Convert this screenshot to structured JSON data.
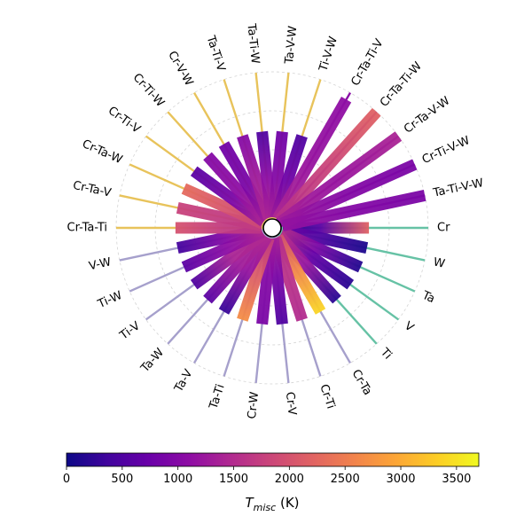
{
  "chart_data": {
    "type": "radial-bar",
    "title": "",
    "colorbar": {
      "label_main": "T",
      "label_sub": "misc",
      "label_unit": " (K)",
      "range": [
        0,
        3700
      ],
      "ticks": [
        0,
        500,
        1000,
        1500,
        2000,
        2500,
        3000,
        3500
      ],
      "colormap": "plasma"
    },
    "group_colors": {
      "unary": "#66c2a5",
      "binary": "#a6a0cc",
      "ternary": "#e8c35b",
      "quaternary": "#8a0ea6"
    },
    "systems": [
      {
        "name": "Cr",
        "group": "unary",
        "length": 0.62,
        "profile": [
          0,
          600,
          2200
        ]
      },
      {
        "name": "W",
        "group": "unary",
        "length": 0.62,
        "profile": [
          900,
          500,
          100
        ]
      },
      {
        "name": "Ta",
        "group": "unary",
        "length": 0.62,
        "profile": [
          1700,
          900,
          150
        ]
      },
      {
        "name": "V",
        "group": "unary",
        "length": 0.62,
        "profile": [
          1700,
          700,
          200
        ]
      },
      {
        "name": "Ti",
        "group": "unary",
        "length": 0.62,
        "profile": [
          1700,
          1200,
          200
        ]
      },
      {
        "name": "Cr-Ta",
        "group": "binary",
        "length": 0.62,
        "profile": [
          1800,
          2600,
          3400
        ]
      },
      {
        "name": "Cr-Ti",
        "group": "binary",
        "length": 0.62,
        "profile": [
          1500,
          1600,
          1500
        ]
      },
      {
        "name": "Cr-V",
        "group": "binary",
        "length": 0.62,
        "profile": [
          1500,
          900,
          500
        ]
      },
      {
        "name": "Cr-W",
        "group": "binary",
        "length": 0.62,
        "profile": [
          1400,
          1000,
          900
        ]
      },
      {
        "name": "Ta-Ti",
        "group": "binary",
        "length": 0.62,
        "profile": [
          1600,
          2100,
          2700
        ]
      },
      {
        "name": "Ta-V",
        "group": "binary",
        "length": 0.62,
        "profile": [
          1500,
          1200,
          300
        ]
      },
      {
        "name": "Ta-W",
        "group": "binary",
        "length": 0.62,
        "profile": [
          1500,
          1300,
          600
        ]
      },
      {
        "name": "Ti-V",
        "group": "binary",
        "length": 0.62,
        "profile": [
          1500,
          1400,
          500
        ]
      },
      {
        "name": "Ti-W",
        "group": "binary",
        "length": 0.62,
        "profile": [
          1500,
          1100,
          600
        ]
      },
      {
        "name": "V-W",
        "group": "binary",
        "length": 0.62,
        "profile": [
          1600,
          1000,
          400
        ]
      },
      {
        "name": "Cr-Ta-Ti",
        "group": "ternary",
        "length": 0.62,
        "profile": [
          1600,
          1700,
          2000
        ]
      },
      {
        "name": "Cr-Ta-V",
        "group": "ternary",
        "length": 0.62,
        "profile": [
          1700,
          1700,
          1800
        ]
      },
      {
        "name": "Cr-Ta-W",
        "group": "ternary",
        "length": 0.62,
        "profile": [
          1800,
          2000,
          2300
        ]
      },
      {
        "name": "Cr-Ti-V",
        "group": "ternary",
        "length": 0.62,
        "profile": [
          1500,
          900,
          600
        ]
      },
      {
        "name": "Cr-Ti-W",
        "group": "ternary",
        "length": 0.62,
        "profile": [
          1500,
          1100,
          1000
        ]
      },
      {
        "name": "Cr-V-W",
        "group": "ternary",
        "length": 0.62,
        "profile": [
          1400,
          900,
          800
        ]
      },
      {
        "name": "Ta-Ti-V",
        "group": "ternary",
        "length": 0.62,
        "profile": [
          1500,
          1300,
          1000
        ]
      },
      {
        "name": "Ta-Ti-W",
        "group": "ternary",
        "length": 0.62,
        "profile": [
          1500,
          1100,
          500
        ]
      },
      {
        "name": "Ta-V-W",
        "group": "ternary",
        "length": 0.62,
        "profile": [
          1500,
          1000,
          800
        ]
      },
      {
        "name": "Ti-V-W",
        "group": "ternary",
        "length": 0.62,
        "profile": [
          1400,
          800,
          500
        ]
      },
      {
        "name": "Cr-Ta-Ti-V",
        "group": "quaternary",
        "length": 0.95,
        "profile": [
          1500,
          1200,
          1100
        ]
      },
      {
        "name": "Cr-Ta-Ti-W",
        "group": "quaternary",
        "length": 1.0,
        "profile": [
          1500,
          1800,
          2200
        ]
      },
      {
        "name": "Cr-Ta-V-W",
        "group": "quaternary",
        "length": 1.0,
        "profile": [
          1400,
          1200,
          1400
        ]
      },
      {
        "name": "Cr-Ti-V-W",
        "group": "quaternary",
        "length": 1.0,
        "profile": [
          1300,
          1000,
          900
        ]
      },
      {
        "name": "Ta-Ti-V-W",
        "group": "quaternary",
        "length": 1.0,
        "profile": [
          1200,
          1000,
          900
        ]
      }
    ]
  }
}
